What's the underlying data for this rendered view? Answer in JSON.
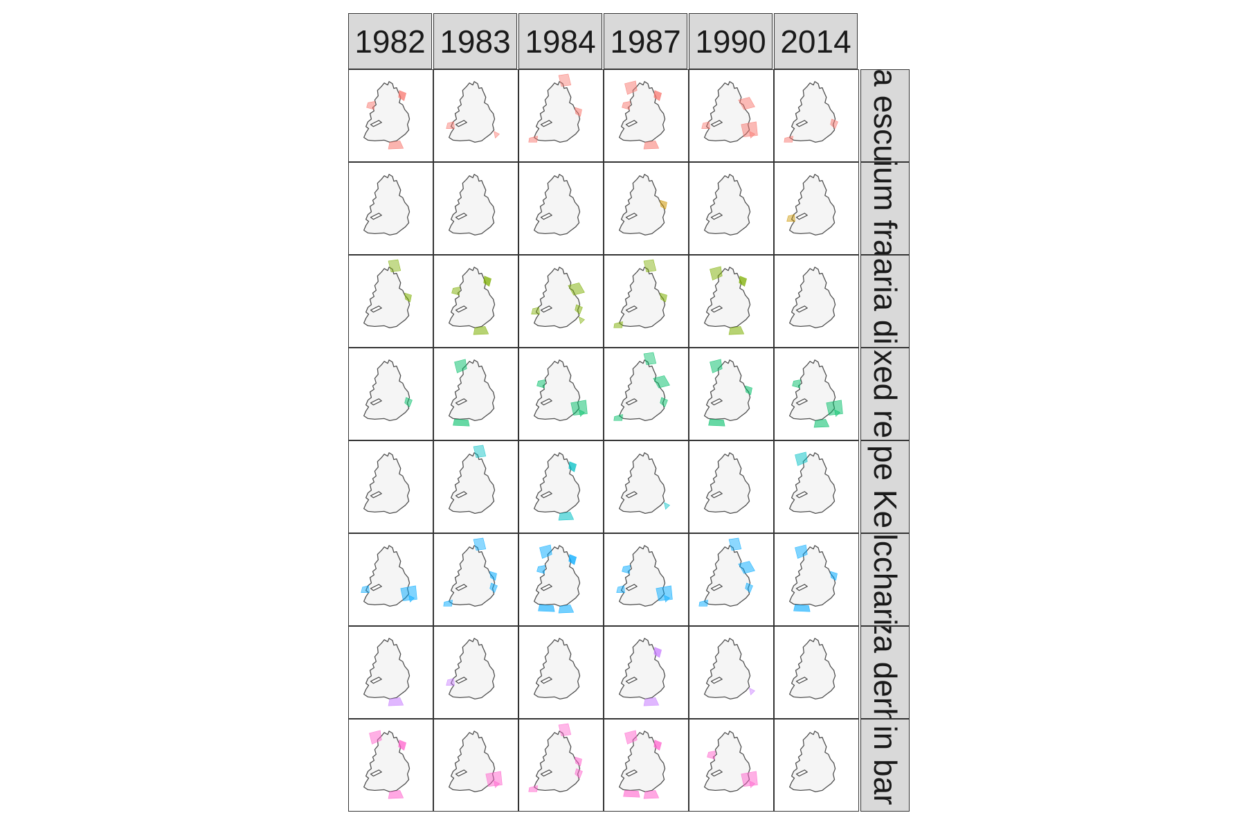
{
  "facet_columns": [
    "1982",
    "1983",
    "1984",
    "1987",
    "1990",
    "2014"
  ],
  "facet_rows": [
    {
      "label": "a escu",
      "color": "#F8766D"
    },
    {
      "label": "ium fra",
      "color": "#CD9600"
    },
    {
      "label": "aria di",
      "color": "#7CAE00"
    },
    {
      "label": "xed re",
      "color": "#00BE67"
    },
    {
      "label": "pe Ke",
      "color": "#00BFC4"
    },
    {
      "label": "lcchari",
      "color": "#00A9FF"
    },
    {
      "label": "za derh",
      "color": "#C77CFF"
    },
    {
      "label": "in bar",
      "color": "#FF61CC"
    }
  ],
  "map": {
    "land_fill": "#f5f5f5",
    "outline_color": "#4d4d4d",
    "presence": [
      [
        3,
        2,
        3,
        4,
        4,
        2
      ],
      [
        0,
        0,
        0,
        1,
        0,
        1
      ],
      [
        2,
        3,
        4,
        3,
        3,
        0
      ],
      [
        1,
        2,
        3,
        4,
        3,
        4
      ],
      [
        0,
        1,
        2,
        1,
        0,
        1
      ],
      [
        3,
        4,
        5,
        4,
        4,
        3
      ],
      [
        1,
        1,
        0,
        2,
        1,
        0
      ],
      [
        3,
        2,
        4,
        4,
        3,
        0
      ]
    ]
  }
}
